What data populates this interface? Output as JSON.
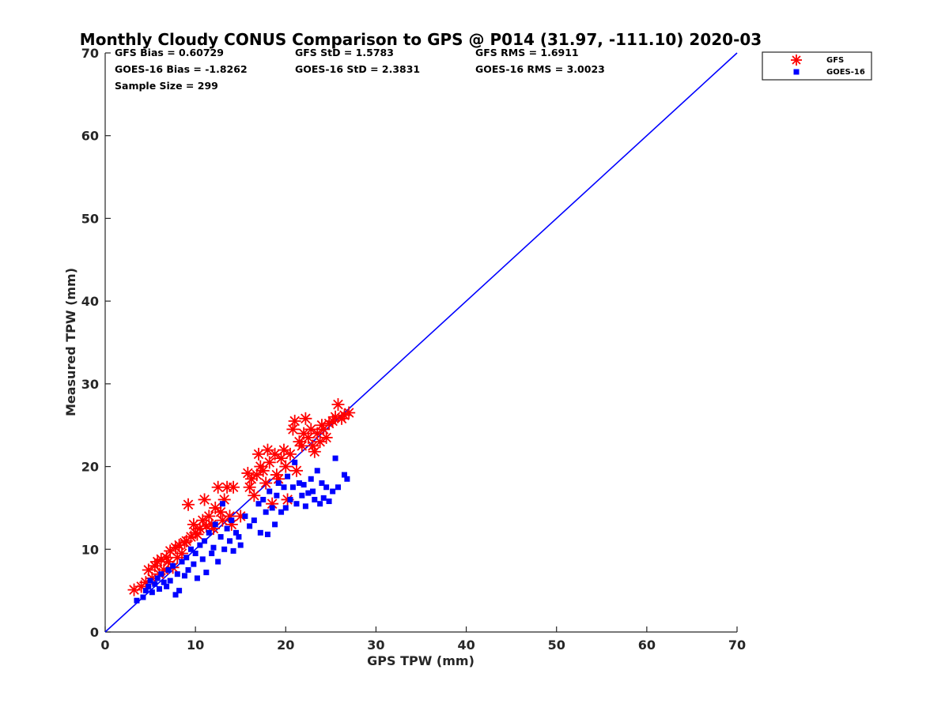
{
  "chart_data": {
    "type": "scatter",
    "title": "Monthly Cloudy CONUS Comparison to GPS @ P014 (31.97, -111.10) 2020-03",
    "xlabel": "GPS TPW (mm)",
    "ylabel": "Measured TPW (mm)",
    "xlim": [
      0,
      70
    ],
    "ylim": [
      0,
      70
    ],
    "xticks": [
      "0",
      "10",
      "20",
      "30",
      "40",
      "50",
      "60",
      "70"
    ],
    "yticks": [
      "0",
      "10",
      "20",
      "30",
      "40",
      "50",
      "60",
      "70"
    ],
    "grid": false,
    "legend_position": "outside top-right",
    "stats": [
      [
        "GFS Bias = 0.60729",
        "GFS StD = 1.5783",
        "GFS RMS = 1.6911"
      ],
      [
        "GOES-16 Bias = -1.8262",
        "GOES-16 StD = 2.3831",
        "GOES-16 RMS = 3.0023"
      ],
      [
        "Sample Size = 299"
      ]
    ],
    "reference_line": {
      "x": [
        0,
        70
      ],
      "y": [
        0,
        70
      ],
      "color": "#0000ff"
    },
    "series": [
      {
        "name": "GFS",
        "marker": "asterisk",
        "color": "#ff0000",
        "points": [
          [
            3.2,
            5.1
          ],
          [
            4.0,
            5.5
          ],
          [
            4.5,
            6.0
          ],
          [
            4.8,
            7.5
          ],
          [
            5.2,
            6.5
          ],
          [
            5.5,
            8.0
          ],
          [
            5.8,
            8.5
          ],
          [
            6.0,
            7.0
          ],
          [
            6.2,
            8.8
          ],
          [
            6.5,
            7.5
          ],
          [
            6.8,
            9.0
          ],
          [
            7.0,
            8.5
          ],
          [
            7.2,
            9.8
          ],
          [
            7.5,
            7.8
          ],
          [
            7.8,
            10.2
          ],
          [
            8.0,
            9.0
          ],
          [
            8.2,
            10.5
          ],
          [
            8.5,
            9.5
          ],
          [
            8.8,
            10.8
          ],
          [
            9.0,
            11.0
          ],
          [
            9.2,
            15.4
          ],
          [
            9.5,
            11.5
          ],
          [
            9.8,
            13.0
          ],
          [
            10.0,
            12.0
          ],
          [
            10.2,
            11.8
          ],
          [
            10.5,
            12.5
          ],
          [
            10.8,
            13.5
          ],
          [
            11.0,
            16.0
          ],
          [
            11.2,
            12.8
          ],
          [
            11.5,
            14.0
          ],
          [
            11.8,
            13.0
          ],
          [
            12.0,
            12.5
          ],
          [
            12.2,
            15.0
          ],
          [
            12.5,
            17.5
          ],
          [
            12.8,
            14.5
          ],
          [
            13.0,
            13.5
          ],
          [
            13.2,
            16.0
          ],
          [
            13.5,
            17.5
          ],
          [
            13.8,
            14.0
          ],
          [
            14.0,
            13.0
          ],
          [
            14.2,
            17.5
          ],
          [
            15.0,
            14.0
          ],
          [
            15.8,
            19.2
          ],
          [
            16.0,
            17.5
          ],
          [
            16.2,
            18.5
          ],
          [
            16.5,
            16.5
          ],
          [
            16.8,
            19.0
          ],
          [
            17.0,
            21.5
          ],
          [
            17.2,
            20.0
          ],
          [
            17.5,
            19.5
          ],
          [
            17.8,
            18.0
          ],
          [
            18.0,
            22.0
          ],
          [
            18.2,
            20.5
          ],
          [
            18.5,
            15.5
          ],
          [
            18.8,
            21.5
          ],
          [
            19.0,
            19.0
          ],
          [
            19.2,
            18.5
          ],
          [
            19.5,
            21.0
          ],
          [
            19.8,
            22.0
          ],
          [
            20.0,
            20.0
          ],
          [
            20.2,
            16.0
          ],
          [
            20.5,
            21.5
          ],
          [
            20.8,
            24.5
          ],
          [
            21.0,
            25.5
          ],
          [
            21.2,
            19.5
          ],
          [
            21.5,
            23.0
          ],
          [
            21.8,
            22.5
          ],
          [
            22.0,
            24.0
          ],
          [
            22.2,
            25.8
          ],
          [
            22.5,
            23.5
          ],
          [
            22.8,
            24.5
          ],
          [
            23.0,
            22.5
          ],
          [
            23.2,
            21.8
          ],
          [
            23.5,
            24.0
          ],
          [
            23.8,
            23.0
          ],
          [
            24.0,
            25.0
          ],
          [
            24.2,
            24.5
          ],
          [
            24.5,
            23.5
          ],
          [
            24.8,
            25.2
          ],
          [
            25.2,
            25.5
          ],
          [
            25.5,
            26.0
          ],
          [
            25.8,
            27.5
          ],
          [
            26.2,
            25.8
          ],
          [
            26.5,
            26.2
          ],
          [
            27.0,
            26.5
          ]
        ]
      },
      {
        "name": "GOES-16",
        "marker": "square",
        "color": "#0000ff",
        "points": [
          [
            3.5,
            3.8
          ],
          [
            4.2,
            4.2
          ],
          [
            4.5,
            5.0
          ],
          [
            4.8,
            5.5
          ],
          [
            5.0,
            6.2
          ],
          [
            5.2,
            4.8
          ],
          [
            5.5,
            5.8
          ],
          [
            5.8,
            6.5
          ],
          [
            6.0,
            5.2
          ],
          [
            6.2,
            7.0
          ],
          [
            6.5,
            6.0
          ],
          [
            6.8,
            5.5
          ],
          [
            7.0,
            7.5
          ],
          [
            7.2,
            6.2
          ],
          [
            7.5,
            8.0
          ],
          [
            7.8,
            4.5
          ],
          [
            8.0,
            7.0
          ],
          [
            8.2,
            5.0
          ],
          [
            8.5,
            8.5
          ],
          [
            8.8,
            6.8
          ],
          [
            9.0,
            9.0
          ],
          [
            9.2,
            7.5
          ],
          [
            9.5,
            10.0
          ],
          [
            9.8,
            8.2
          ],
          [
            10.0,
            9.5
          ],
          [
            10.2,
            6.5
          ],
          [
            10.5,
            10.5
          ],
          [
            10.8,
            8.8
          ],
          [
            11.0,
            11.0
          ],
          [
            11.2,
            7.2
          ],
          [
            11.5,
            12.0
          ],
          [
            11.8,
            9.5
          ],
          [
            12.0,
            10.2
          ],
          [
            12.2,
            13.0
          ],
          [
            12.5,
            8.5
          ],
          [
            12.8,
            11.5
          ],
          [
            13.0,
            15.5
          ],
          [
            13.2,
            10.0
          ],
          [
            13.5,
            12.5
          ],
          [
            13.8,
            11.0
          ],
          [
            14.0,
            13.5
          ],
          [
            14.2,
            9.8
          ],
          [
            14.5,
            12.0
          ],
          [
            14.8,
            11.5
          ],
          [
            15.0,
            10.5
          ],
          [
            15.5,
            14.0
          ],
          [
            16.0,
            12.8
          ],
          [
            16.5,
            13.5
          ],
          [
            17.0,
            15.5
          ],
          [
            17.2,
            12.0
          ],
          [
            17.5,
            16.0
          ],
          [
            17.8,
            14.5
          ],
          [
            18.0,
            11.8
          ],
          [
            18.2,
            17.0
          ],
          [
            18.5,
            15.0
          ],
          [
            18.8,
            13.0
          ],
          [
            19.0,
            16.5
          ],
          [
            19.2,
            18.0
          ],
          [
            19.5,
            14.5
          ],
          [
            19.8,
            17.5
          ],
          [
            20.0,
            15.0
          ],
          [
            20.2,
            18.8
          ],
          [
            20.5,
            16.0
          ],
          [
            20.8,
            17.5
          ],
          [
            21.0,
            20.5
          ],
          [
            21.2,
            15.5
          ],
          [
            21.5,
            18.0
          ],
          [
            21.8,
            16.5
          ],
          [
            22.0,
            17.8
          ],
          [
            22.2,
            15.2
          ],
          [
            22.5,
            16.8
          ],
          [
            22.8,
            18.5
          ],
          [
            23.0,
            17.0
          ],
          [
            23.2,
            16.0
          ],
          [
            23.5,
            19.5
          ],
          [
            23.8,
            15.5
          ],
          [
            24.0,
            18.0
          ],
          [
            24.2,
            16.2
          ],
          [
            24.5,
            17.5
          ],
          [
            24.8,
            15.8
          ],
          [
            25.2,
            17.0
          ],
          [
            25.5,
            21.0
          ],
          [
            25.8,
            17.5
          ],
          [
            26.5,
            19.0
          ],
          [
            26.8,
            18.5
          ]
        ]
      }
    ]
  }
}
